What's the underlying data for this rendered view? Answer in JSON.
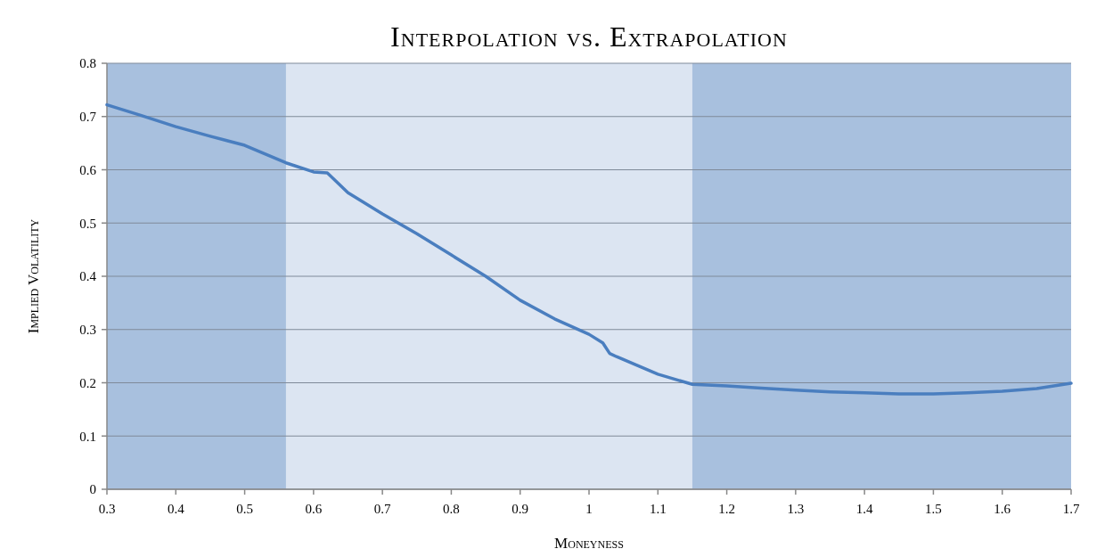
{
  "chart_data": {
    "type": "line",
    "title": "Interpolation vs. Extrapolation",
    "xlabel": "Moneyness",
    "ylabel": "Implied Volatility",
    "x": [
      0.3,
      0.35,
      0.4,
      0.45,
      0.5,
      0.56,
      0.6,
      0.62,
      0.65,
      0.7,
      0.75,
      0.8,
      0.85,
      0.9,
      0.95,
      1.0,
      1.02,
      1.03,
      1.04,
      1.1,
      1.15,
      1.2,
      1.25,
      1.3,
      1.35,
      1.4,
      1.45,
      1.5,
      1.55,
      1.6,
      1.65,
      1.7
    ],
    "series": [
      {
        "color": "#4a7ebf",
        "values": [
          0.722,
          0.702,
          0.681,
          0.663,
          0.646,
          0.613,
          0.596,
          0.594,
          0.557,
          0.517,
          0.48,
          0.44,
          0.4,
          0.355,
          0.32,
          0.291,
          0.275,
          0.255,
          0.249,
          0.216,
          0.197,
          0.194,
          0.19,
          0.186,
          0.183,
          0.181,
          0.179,
          0.179,
          0.181,
          0.184,
          0.189,
          0.199
        ]
      }
    ],
    "xlim": [
      0.3,
      1.7
    ],
    "xticks": [
      0.3,
      0.4,
      0.5,
      0.6,
      0.7,
      0.8,
      0.9,
      1,
      1.1,
      1.2,
      1.3,
      1.4,
      1.5,
      1.6,
      1.7
    ],
    "ylim": [
      0,
      0.8
    ],
    "yticks": [
      0,
      0.1,
      0.2,
      0.3,
      0.4,
      0.5,
      0.6,
      0.7,
      0.8
    ],
    "bands": [
      {
        "axis": "x",
        "from": 0.3,
        "to": 0.56,
        "color": "#a8c0de"
      },
      {
        "axis": "x",
        "from": 0.56,
        "to": 1.15,
        "color": "#dce5f2"
      },
      {
        "axis": "x",
        "from": 1.15,
        "to": 1.7,
        "color": "#a8c0de"
      }
    ],
    "grid": "y",
    "marker": "none",
    "line_style": "solid"
  }
}
